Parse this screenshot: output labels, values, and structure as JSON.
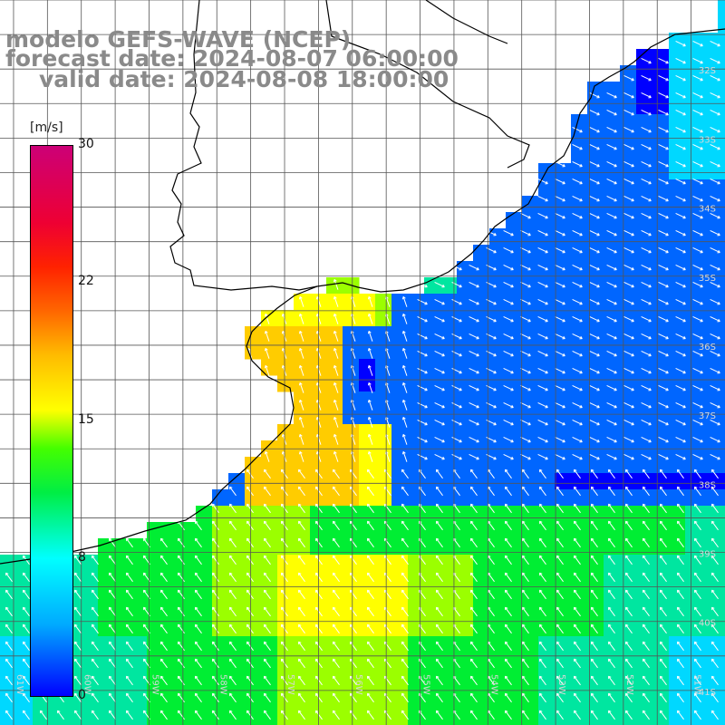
{
  "title": {
    "line1": "modelo GEFS-WAVE (NCEP)",
    "line2": "forecast date: 2024-08-07 06:00:00",
    "line3": "valid date: 2024-08-08 18:00:00"
  },
  "colorbar": {
    "unit": "[m/s]",
    "ticks": [
      "30",
      "22",
      "15",
      "8",
      "0"
    ],
    "range": [
      0,
      30
    ]
  },
  "map": {
    "lat_labels": [
      "32S",
      "33S",
      "34S",
      "35S",
      "36S",
      "37S",
      "38S",
      "39S",
      "40S",
      "41S"
    ],
    "lon_labels": [
      "61W",
      "60W",
      "59W",
      "58W",
      "57W",
      "56W",
      "55W",
      "54W",
      "53W",
      "52W",
      "51W"
    ],
    "lat_range": [
      -41.5,
      -31.0
    ],
    "lon_range": [
      -61.2,
      -50.5
    ],
    "grid_lats": [
      -31,
      -31.5,
      -32,
      -32.5,
      -33,
      -33.5,
      -34,
      -34.5,
      -35,
      -35.5,
      -36,
      -36.5,
      -37,
      -37.5,
      -38,
      -38.5,
      -39,
      -39.5,
      -40,
      -40.5,
      -41
    ],
    "grid_lons": [
      -61,
      -60.5,
      -60,
      -59.5,
      -59,
      -58.5,
      -58,
      -57.5,
      -57,
      -56.5,
      -56,
      -55.5,
      -55,
      -54.5,
      -54,
      -53.5,
      -53,
      -52.5,
      -52,
      -51.5,
      -51
    ],
    "coastline_color": "#000000",
    "arrow_color": "#ffffff"
  }
}
